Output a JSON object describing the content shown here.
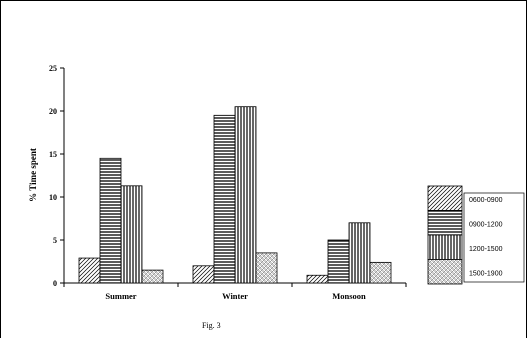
{
  "chart_data": {
    "type": "bar",
    "title": "",
    "xlabel": "",
    "ylabel": "% Time spent",
    "ylim": [
      0,
      25
    ],
    "yticks": [
      "0",
      "5",
      "10",
      "15",
      "20",
      "25"
    ],
    "grid": false,
    "legend_position": "right",
    "categories": [
      "Summer",
      "Winter",
      "Monsoon"
    ],
    "series": [
      {
        "name": "0600-0900",
        "values": [
          2.9,
          2.0,
          0.9
        ],
        "pattern": "diagonal"
      },
      {
        "name": "0900-1200",
        "values": [
          14.5,
          19.5,
          5.0
        ],
        "pattern": "horizontal"
      },
      {
        "name": "1200-1500",
        "values": [
          11.3,
          20.5,
          7.0
        ],
        "pattern": "vertical"
      },
      {
        "name": "1500-1900",
        "values": [
          1.5,
          3.5,
          2.4
        ],
        "pattern": "dotted"
      }
    ],
    "caption": "Fig. 3"
  },
  "colors": {
    "frame": "#000000",
    "fill_pattern": "#000000",
    "background": "#ffffff"
  }
}
